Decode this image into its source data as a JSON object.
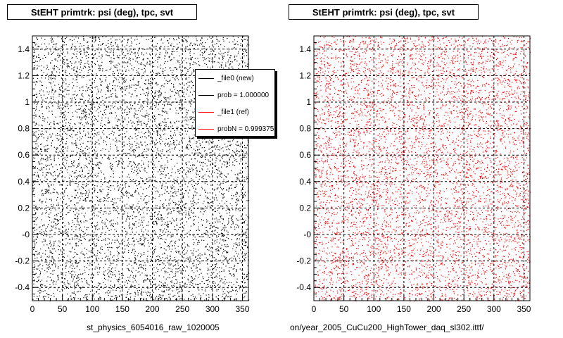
{
  "titles": {
    "left": "StEHT primtrk: psi (deg), tpc, svt",
    "right": "StEHT primtrk: psi (deg), tpc, svt"
  },
  "legend": {
    "items": [
      {
        "label": "_file0 (new)",
        "color": "#000000"
      },
      {
        "label": "prob = 1.000000",
        "color": "#000000"
      },
      {
        "label": "_file1 (ref)",
        "color": "#ff0000"
      },
      {
        "label": "probN = 0.999375",
        "color": "#ff0000"
      }
    ]
  },
  "footer": {
    "left": "st_physics_6054016_raw_1020005",
    "right": "on/year_2005_CuCu200_HighTower_daq_sl302.ittf/"
  },
  "chart_data": [
    {
      "type": "scatter",
      "title": "StEHT primtrk: psi (deg), tpc, svt",
      "series_color": "#000000",
      "xlim": [
        0,
        360
      ],
      "ylim": [
        -0.5,
        1.5
      ],
      "xticks": [
        0,
        50,
        100,
        150,
        200,
        250,
        300,
        350
      ],
      "xtick_labels": [
        "0",
        "50",
        "100",
        "150",
        "200",
        "250",
        "300",
        "350"
      ],
      "yticks": [
        -0.4,
        -0.2,
        0.0,
        0.2,
        0.4,
        0.6,
        0.8,
        1.0,
        1.2,
        1.4
      ],
      "ytick_labels": [
        "-0.4",
        "-0.2",
        "-0",
        "0.2",
        "0.4",
        "0.6",
        "0.8",
        "1",
        "1.2",
        "1.4"
      ],
      "grid": true,
      "legend_position": "top-right"
    },
    {
      "type": "scatter",
      "title": "StEHT primtrk: psi (deg), tpc, svt",
      "series_color": "#ff0000",
      "xlim": [
        0,
        360
      ],
      "ylim": [
        -0.5,
        1.5
      ],
      "xticks": [
        0,
        50,
        100,
        150,
        200,
        250,
        300,
        350
      ],
      "xtick_labels": [
        "0",
        "50",
        "100",
        "150",
        "200",
        "250",
        "300",
        "350"
      ],
      "yticks": [
        -0.4,
        -0.2,
        0.0,
        0.2,
        0.4,
        0.6,
        0.8,
        1.0,
        1.2,
        1.4
      ],
      "ytick_labels": [
        "-0.4",
        "-0.2",
        "-0",
        "0.2",
        "0.4",
        "0.6",
        "0.8",
        "1",
        "1.2",
        "1.4"
      ],
      "grid": true
    }
  ]
}
